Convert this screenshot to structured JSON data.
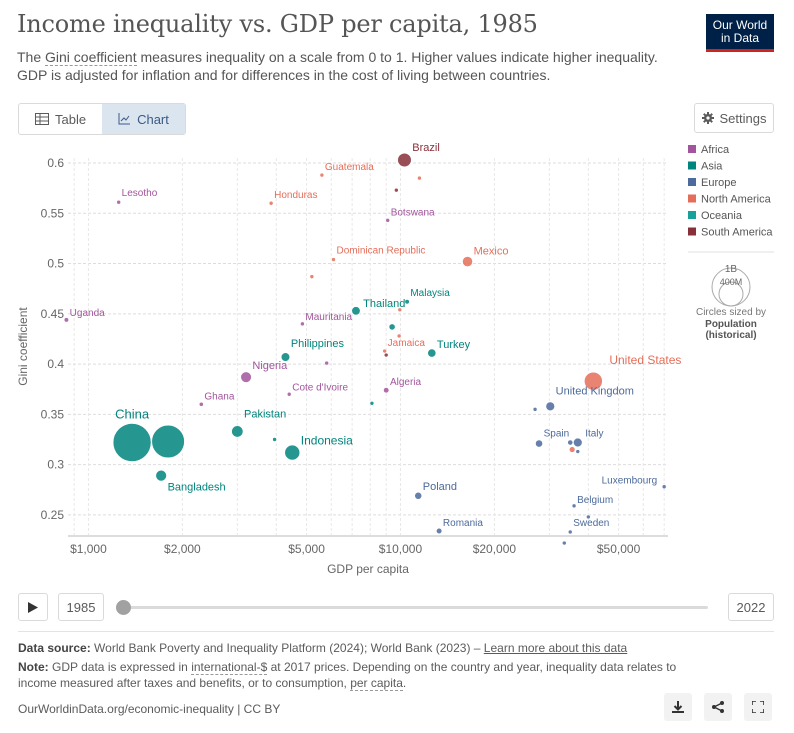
{
  "header": {
    "title": "Income inequality vs. GDP per capita, 1985",
    "subtitle_pre": "The ",
    "subtitle_link": "Gini coefficient",
    "subtitle_post": " measures inequality on a scale from 0 to 1. Higher values indicate higher inequality. GDP is adjusted for inflation and for differences in the cost of living between countries.",
    "logo_line1": "Our World",
    "logo_line2": "in Data"
  },
  "tabs": {
    "table_label": "Table",
    "chart_label": "Chart"
  },
  "settings_label": "Settings",
  "timeline": {
    "start_year": "1985",
    "end_year": "2022",
    "current": 1985
  },
  "footer": {
    "source_label": "Data source:",
    "source_text": " World Bank Poverty and Inequality Platform (2024); World Bank (2023) – ",
    "learn_more": "Learn more about this data",
    "note_label": "Note:",
    "note_pre": " GDP data is expressed in ",
    "note_link1": "international-$",
    "note_mid": " at 2017 prices. Depending on the country and year, inequality data relates to income measured after taxes and benefits, or to consumption, ",
    "note_link2": "per capita",
    "note_end": ".",
    "url": "OurWorldinData.org/economic-inequality | CC BY"
  },
  "chart_data": {
    "type": "scatter",
    "xlabel": "GDP per capita",
    "ylabel": "Gini coefficient",
    "x_scale": "log",
    "xlim": [
      860,
      72000
    ],
    "ylim": [
      0.23,
      0.605
    ],
    "x_ticks": [
      1000,
      2000,
      5000,
      10000,
      20000,
      50000
    ],
    "x_tick_labels": [
      "$1,000",
      "$2,000",
      "$5,000",
      "$10,000",
      "$20,000",
      "$50,000"
    ],
    "y_ticks": [
      0.25,
      0.3,
      0.35,
      0.4,
      0.45,
      0.5,
      0.55,
      0.6
    ],
    "y_tick_labels": [
      "0.25",
      "0.3",
      "0.35",
      "0.4",
      "0.45",
      "0.5",
      "0.55",
      "0.6"
    ],
    "legend": [
      {
        "name": "Africa",
        "color": "#a2559c"
      },
      {
        "name": "Asia",
        "color": "#00847e"
      },
      {
        "name": "Europe",
        "color": "#4c6a9c"
      },
      {
        "name": "North America",
        "color": "#e56e5a"
      },
      {
        "name": "Oceania",
        "color": "#18a19a"
      },
      {
        "name": "South America",
        "color": "#883039"
      }
    ],
    "size_legend": {
      "large": "1B",
      "small": "400M",
      "caption1": "Circles sized by",
      "caption2": "Population",
      "caption3": "(historical)"
    },
    "points": [
      {
        "label": "China",
        "continent": "Asia",
        "gdp": 1380,
        "gini": 0.322,
        "pop": 1060
      },
      {
        "label": "",
        "continent": "Asia",
        "gdp": 1800,
        "gini": 0.323,
        "pop": 780
      },
      {
        "label": "Bangladesh",
        "continent": "Asia",
        "gdp": 1710,
        "gini": 0.289,
        "pop": 86
      },
      {
        "label": "Pakistan",
        "continent": "Asia",
        "gdp": 3000,
        "gini": 0.333,
        "pop": 95
      },
      {
        "label": "Indonesia",
        "continent": "Asia",
        "gdp": 4500,
        "gini": 0.312,
        "pop": 165
      },
      {
        "label": "Philippines",
        "continent": "Asia",
        "gdp": 4280,
        "gini": 0.407,
        "pop": 55
      },
      {
        "label": "Thailand",
        "continent": "Asia",
        "gdp": 7200,
        "gini": 0.453,
        "pop": 52
      },
      {
        "label": "Malaysia",
        "continent": "Asia",
        "gdp": 10500,
        "gini": 0.462,
        "pop": 15
      },
      {
        "label": "Turkey",
        "continent": "Asia",
        "gdp": 12600,
        "gini": 0.411,
        "pop": 50
      },
      {
        "label": "",
        "continent": "Asia",
        "gdp": 9400,
        "gini": 0.437,
        "pop": 28
      },
      {
        "label": "",
        "continent": "Asia",
        "gdp": 3950,
        "gini": 0.325,
        "pop": 6
      },
      {
        "label": "",
        "continent": "Asia",
        "gdp": 8100,
        "gini": 0.361,
        "pop": 4
      },
      {
        "label": "Brazil",
        "continent": "South America",
        "gdp": 10300,
        "gini": 0.603,
        "pop": 136
      },
      {
        "label": "",
        "continent": "South America",
        "gdp": 9700,
        "gini": 0.573,
        "pop": 6
      },
      {
        "label": "",
        "continent": "South America",
        "gdp": 9000,
        "gini": 0.409,
        "pop": 4
      },
      {
        "label": "Mexico",
        "continent": "North America",
        "gdp": 16400,
        "gini": 0.502,
        "pop": 76
      },
      {
        "label": "United States",
        "continent": "North America",
        "gdp": 41500,
        "gini": 0.383,
        "pop": 238
      },
      {
        "label": "Guatemala",
        "continent": "North America",
        "gdp": 5600,
        "gini": 0.588,
        "pop": 8
      },
      {
        "label": "Honduras",
        "continent": "North America",
        "gdp": 3850,
        "gini": 0.56,
        "pop": 4
      },
      {
        "label": "Dominican Republic",
        "continent": "North America",
        "gdp": 6100,
        "gini": 0.504,
        "pop": 6
      },
      {
        "label": "Jamaica",
        "continent": "North America",
        "gdp": 8900,
        "gini": 0.413,
        "pop": 2
      },
      {
        "label": "",
        "continent": "North America",
        "gdp": 5200,
        "gini": 0.487,
        "pop": 3
      },
      {
        "label": "",
        "continent": "North America",
        "gdp": 11500,
        "gini": 0.585,
        "pop": 2
      },
      {
        "label": "",
        "continent": "North America",
        "gdp": 9900,
        "gini": 0.428,
        "pop": 3
      },
      {
        "label": "",
        "continent": "North America",
        "gdp": 9950,
        "gini": 0.454,
        "pop": 2
      },
      {
        "label": "",
        "continent": "North America",
        "gdp": 35500,
        "gini": 0.315,
        "pop": 25
      },
      {
        "label": "United Kingdom",
        "continent": "Europe",
        "gdp": 30200,
        "gini": 0.358,
        "pop": 57
      },
      {
        "label": "Spain",
        "continent": "Europe",
        "gdp": 27800,
        "gini": 0.321,
        "pop": 38
      },
      {
        "label": "Italy",
        "continent": "Europe",
        "gdp": 37000,
        "gini": 0.322,
        "pop": 57
      },
      {
        "label": "",
        "continent": "Europe",
        "gdp": 35000,
        "gini": 0.322,
        "pop": 20
      },
      {
        "label": "",
        "continent": "Europe",
        "gdp": 37000,
        "gini": 0.313,
        "pop": 8
      },
      {
        "label": "",
        "continent": "Europe",
        "gdp": 27000,
        "gini": 0.355,
        "pop": 5
      },
      {
        "label": "Luxembourg",
        "continent": "Europe",
        "gdp": 70000,
        "gini": 0.278,
        "pop": 1
      },
      {
        "label": "Belgium",
        "continent": "Europe",
        "gdp": 36000,
        "gini": 0.259,
        "pop": 10
      },
      {
        "label": "Sweden",
        "continent": "Europe",
        "gdp": 35000,
        "gini": 0.233,
        "pop": 8
      },
      {
        "label": "",
        "continent": "Europe",
        "gdp": 40000,
        "gini": 0.248,
        "pop": 4
      },
      {
        "label": "",
        "continent": "Europe",
        "gdp": 33500,
        "gini": 0.222,
        "pop": 5
      },
      {
        "label": "Poland",
        "continent": "Europe",
        "gdp": 11400,
        "gini": 0.269,
        "pop": 37
      },
      {
        "label": "Romania",
        "continent": "Europe",
        "gdp": 13300,
        "gini": 0.234,
        "pop": 23
      },
      {
        "label": "Lesotho",
        "continent": "Africa",
        "gdp": 1250,
        "gini": 0.561,
        "pop": 2
      },
      {
        "label": "Uganda",
        "continent": "Africa",
        "gdp": 850,
        "gini": 0.444,
        "pop": 15
      },
      {
        "label": "Botswana",
        "continent": "Africa",
        "gdp": 9100,
        "gini": 0.543,
        "pop": 1
      },
      {
        "label": "Mauritania",
        "continent": "Africa",
        "gdp": 4850,
        "gini": 0.44,
        "pop": 2
      },
      {
        "label": "Nigeria",
        "continent": "Africa",
        "gdp": 3200,
        "gini": 0.387,
        "pop": 83
      },
      {
        "label": "Cote d'Ivoire",
        "continent": "Africa",
        "gdp": 4400,
        "gini": 0.37,
        "pop": 10
      },
      {
        "label": "Algeria",
        "continent": "Africa",
        "gdp": 9000,
        "gini": 0.374,
        "pop": 22
      },
      {
        "label": "Ghana",
        "continent": "Africa",
        "gdp": 2300,
        "gini": 0.36,
        "pop": 13
      },
      {
        "label": "",
        "continent": "Africa",
        "gdp": 5800,
        "gini": 0.401,
        "pop": 3
      }
    ]
  }
}
